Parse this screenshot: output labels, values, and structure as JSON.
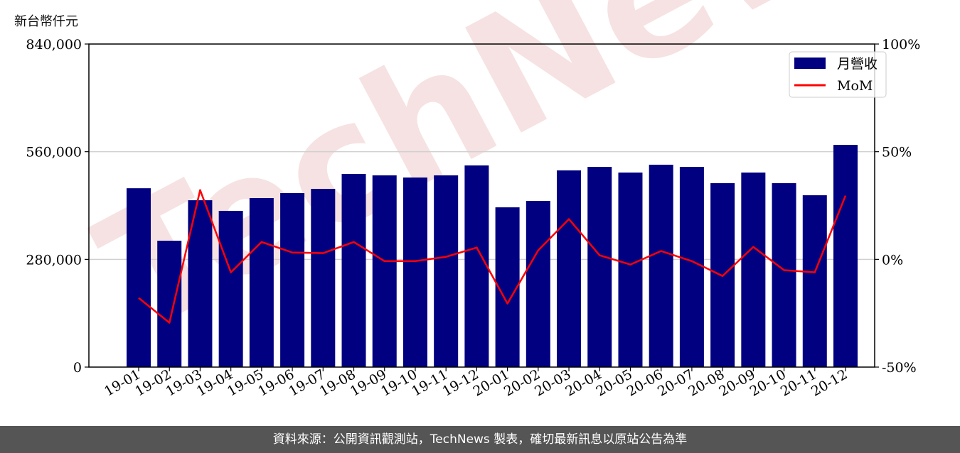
{
  "unit_label": "新台幣仟元",
  "footer": "資料來源：公開資訊觀測站，TechNews 製表，確切最新訊息以原站公告為準",
  "watermark": "TechNews",
  "chart_data": {
    "type": "bar",
    "categories": [
      "19-01",
      "19-02",
      "19-03",
      "19-04",
      "19-05",
      "19-06",
      "19-07",
      "19-08",
      "19-09",
      "19-10",
      "19-11",
      "19-12",
      "20-01",
      "20-02",
      "20-03",
      "20-04",
      "20-05",
      "20-06",
      "20-07",
      "20-08",
      "20-09",
      "20-10",
      "20-11",
      "20-12"
    ],
    "series": [
      {
        "name": "月營收",
        "type": "bar",
        "axis": "left",
        "color": "#000080",
        "values": [
          465000,
          328600,
          433800,
          406200,
          439400,
          452300,
          463400,
          502200,
          498500,
          492900,
          498500,
          524300,
          415400,
          432000,
          511400,
          520600,
          505800,
          526200,
          520600,
          478200,
          505800,
          478200,
          446800,
          577800
        ]
      },
      {
        "name": "MoM",
        "type": "line",
        "axis": "right",
        "color": "#ff0000",
        "values": [
          -17.9,
          -29.4,
          32.2,
          -6.0,
          8.1,
          3.2,
          2.9,
          8.1,
          -0.8,
          -0.8,
          1.2,
          5.5,
          -20.5,
          4.2,
          18.7,
          1.9,
          -2.4,
          3.9,
          -0.8,
          -7.7,
          5.8,
          -5.0,
          -6.0,
          29.6
        ]
      }
    ],
    "ylim": [
      0,
      840000
    ],
    "yticks": [
      "0",
      "280,000",
      "560,000",
      "840,000"
    ],
    "ytick_values": [
      0,
      280000,
      560000,
      840000
    ],
    "y2lim": [
      -50,
      100
    ],
    "y2ticks": [
      "-50%",
      "0%",
      "50%",
      "100%"
    ],
    "y2tick_values": [
      -50,
      0,
      50,
      100
    ],
    "ylabel": "新台幣仟元",
    "grid": true,
    "legend": "top-right"
  }
}
